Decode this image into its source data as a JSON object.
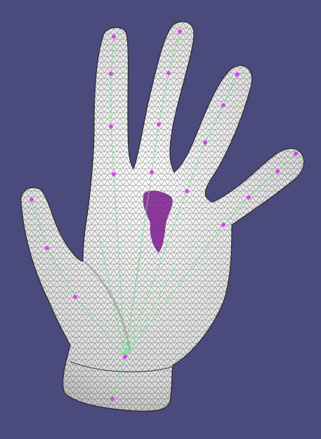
{
  "viewer": {
    "background_color": "#4a4a7c",
    "model": {
      "name": "hand-mesh",
      "surface_color": "#e8e8e8",
      "wireframe_color": "#1a1a1a",
      "highlight_region_color": "#7a1a8c"
    },
    "skeleton": {
      "bone_color": "#6ee08a",
      "joint_color": "#e040f0",
      "joint_count": 22
    }
  }
}
